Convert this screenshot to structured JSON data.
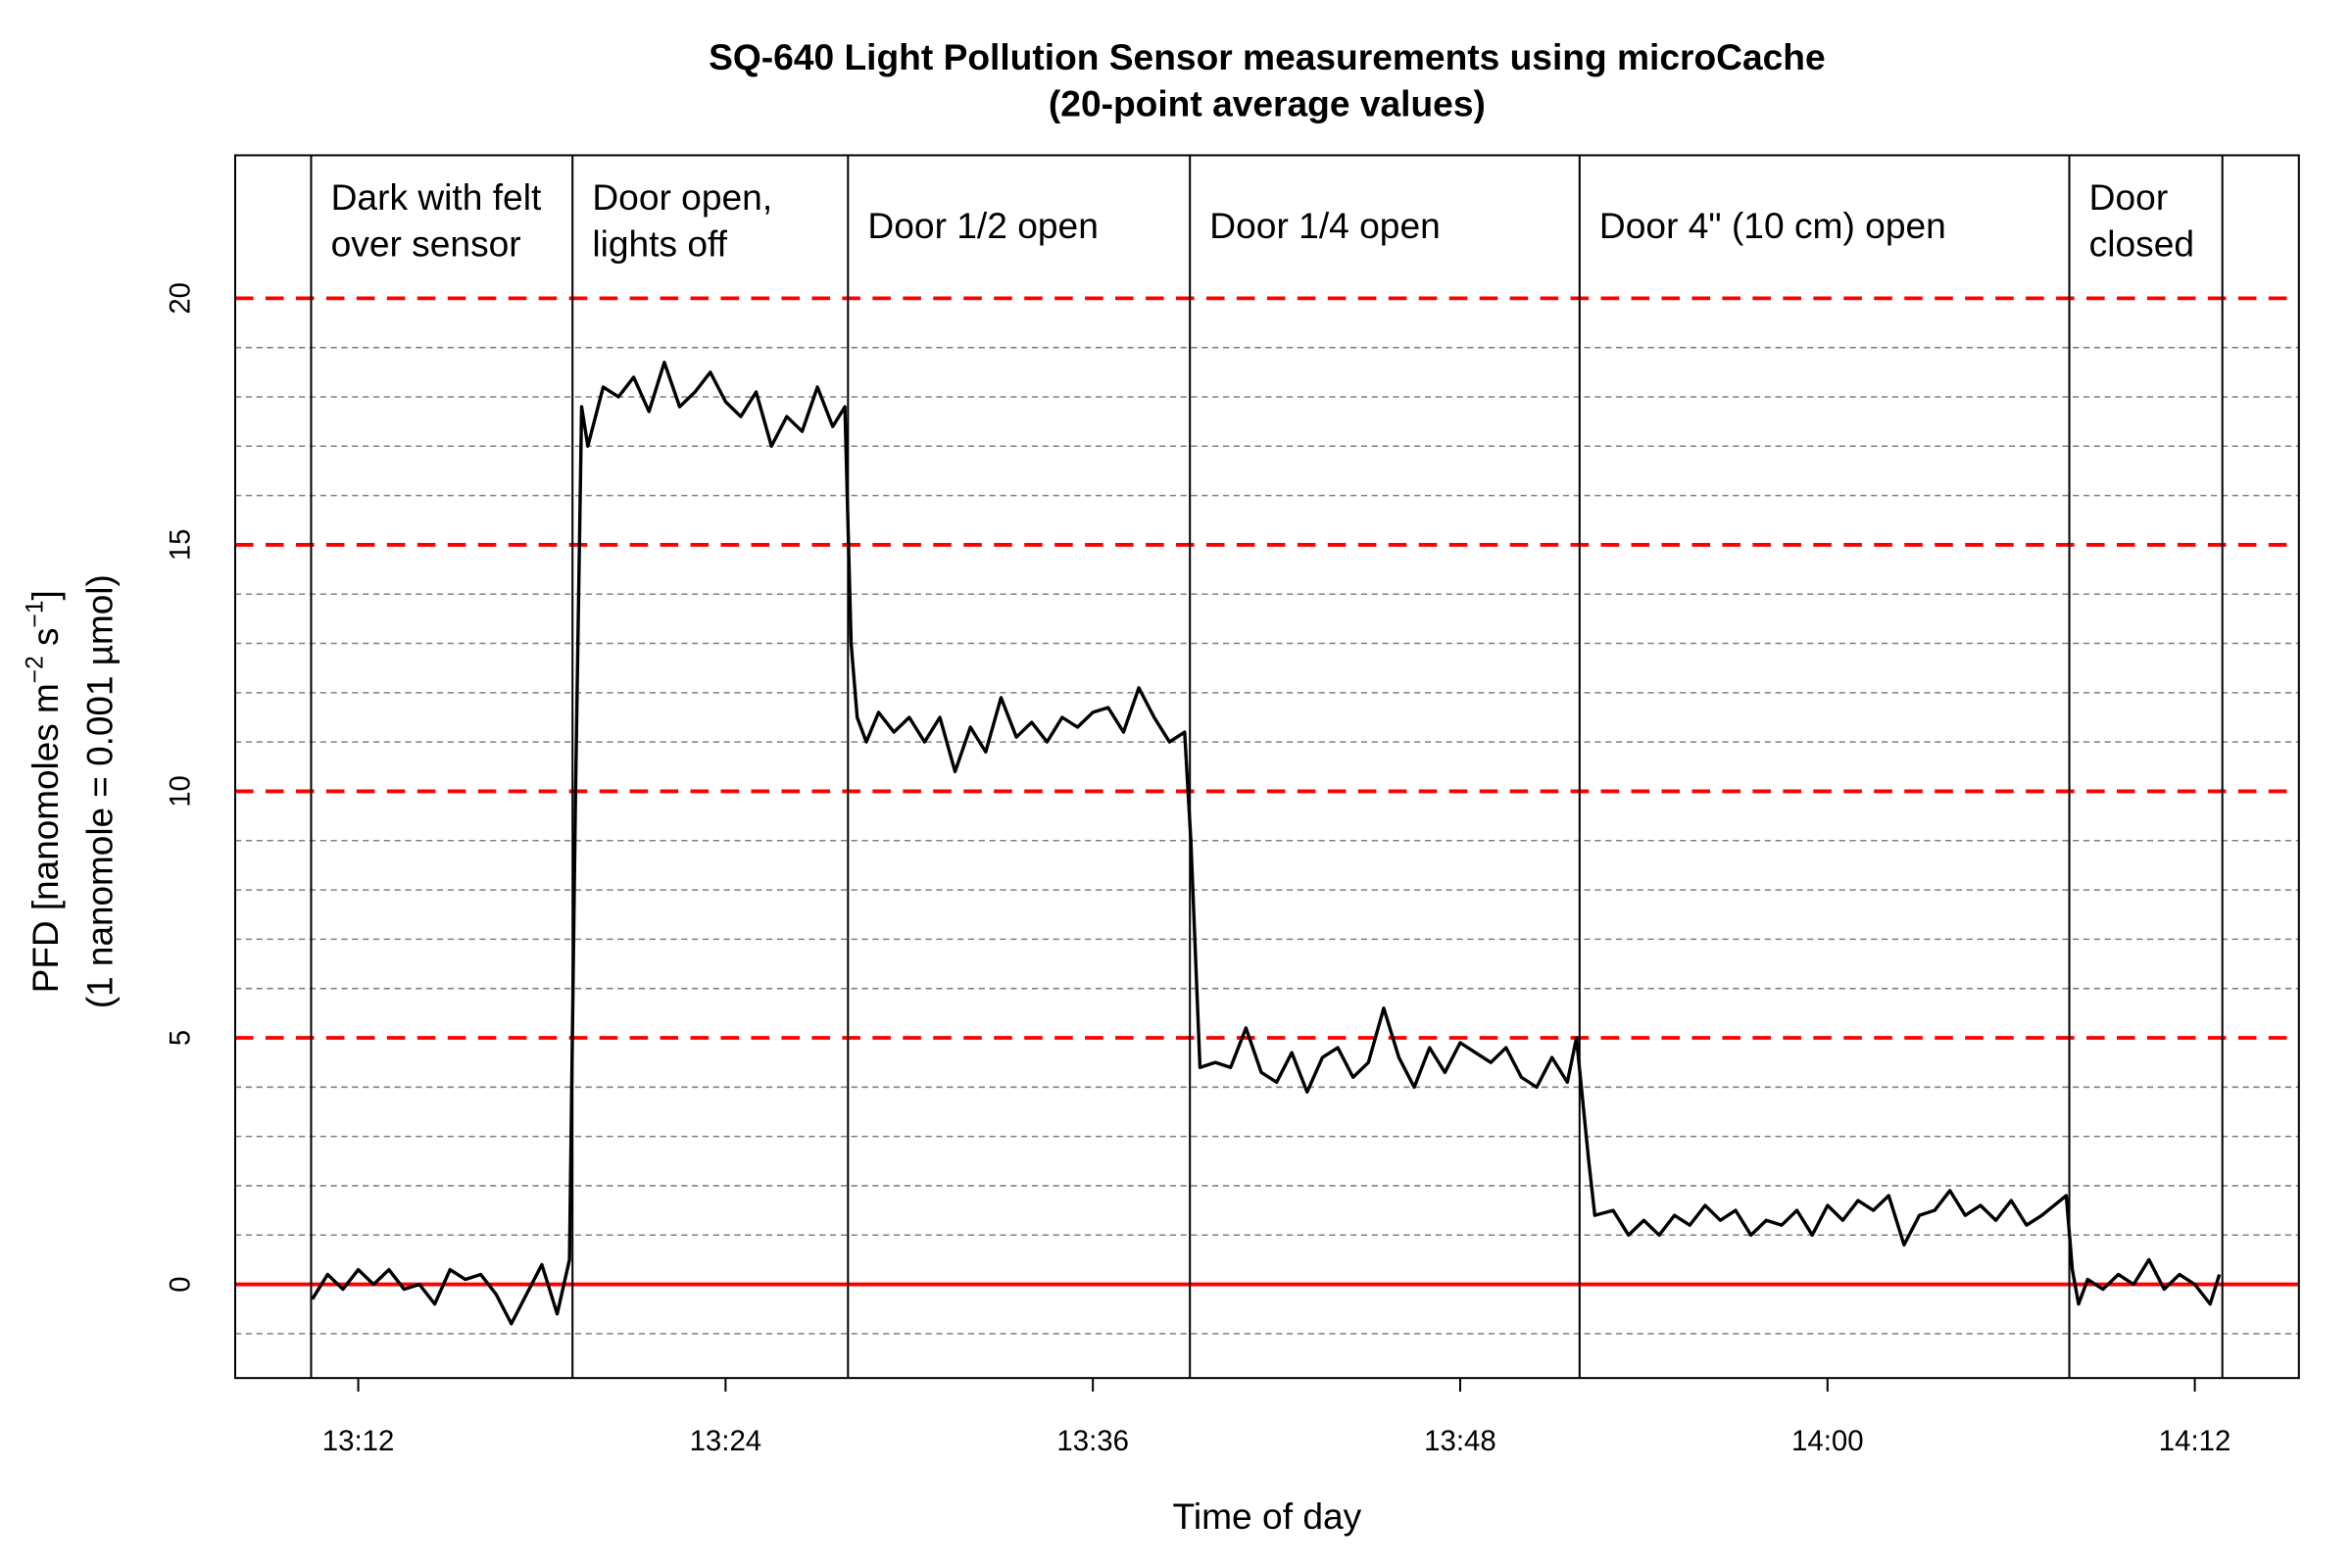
{
  "chart_data": {
    "type": "line",
    "title": "SQ-640 Light Pollution Sensor measurements using microCache",
    "subtitle": "(20-point average values)",
    "xlabel": "Time of day",
    "ylabel": "PFD [nanomoles m^-2 s^-1]",
    "ylabel_main": "PFD [nanomoles  m",
    "ylabel_sup1": "−2",
    "ylabel_mid": " s",
    "ylabel_sup2": "−1",
    "ylabel_end": "]",
    "ylabel2": "(1 nanomole = 0.001 µmol)",
    "x_unit": "minutes after 13:00",
    "xlim": [
      7.98,
      75.4
    ],
    "ylim": [
      -1.9,
      22.9
    ],
    "x_ticks": [
      12,
      24,
      36,
      48,
      60,
      72
    ],
    "x_tick_labels": [
      "13:12",
      "13:24",
      "13:36",
      "13:48",
      "14:00",
      "14:12"
    ],
    "y_ticks": [
      0,
      5,
      10,
      15,
      20
    ],
    "y_tick_labels": [
      "0",
      "5",
      "10",
      "15",
      "20"
    ],
    "grid_minor": [
      -1,
      1,
      2,
      3,
      4,
      6,
      7,
      8,
      9,
      11,
      12,
      13,
      14,
      16,
      17,
      18,
      19
    ],
    "grid_major_red": [
      5,
      10,
      15,
      20
    ],
    "zero_line": 0,
    "colors": {
      "line": "#000000",
      "red": "#ff0000",
      "grid": "#808080"
    },
    "region_boundaries": [
      10.46,
      19.0,
      28.0,
      39.17,
      51.9,
      67.9,
      72.9
    ],
    "regions": [
      {
        "start": 10.46,
        "end": 19.0,
        "lines": [
          "Dark with felt",
          "over sensor"
        ]
      },
      {
        "start": 19.0,
        "end": 28.0,
        "lines": [
          "Door open,",
          "lights off"
        ]
      },
      {
        "start": 28.0,
        "end": 39.17,
        "lines": [
          "Door 1/2 open"
        ]
      },
      {
        "start": 39.17,
        "end": 51.9,
        "lines": [
          "Door 1/4 open"
        ]
      },
      {
        "start": 51.9,
        "end": 67.9,
        "lines": [
          "Door 4\" (10 cm) open"
        ]
      },
      {
        "start": 67.9,
        "end": 72.9,
        "lines": [
          "Door",
          "closed"
        ]
      }
    ],
    "series": [
      {
        "name": "PFD",
        "x": [
          10.5,
          11,
          11.5,
          12,
          12.5,
          13,
          13.5,
          14,
          14.5,
          15,
          15.5,
          16,
          16.5,
          17,
          17.5,
          18,
          18.5,
          18.9,
          19.1,
          19.3,
          19.5,
          20,
          20.5,
          21,
          21.5,
          22,
          22.5,
          23,
          23.5,
          24,
          24.5,
          25,
          25.5,
          26,
          26.5,
          27,
          27.5,
          27.9,
          28.1,
          28.3,
          28.6,
          29,
          29.5,
          30,
          30.5,
          31,
          31.5,
          32,
          32.5,
          33,
          33.5,
          34,
          34.5,
          35,
          35.5,
          36,
          36.5,
          37,
          37.5,
          38,
          38.5,
          39,
          39.2,
          39.5,
          40,
          40.5,
          41,
          41.5,
          42,
          42.5,
          43,
          43.5,
          44,
          44.5,
          45,
          45.5,
          46,
          46.5,
          47,
          47.5,
          48,
          48.5,
          49,
          49.5,
          50,
          50.5,
          51,
          51.5,
          51.8,
          52.2,
          52.4,
          53,
          53.5,
          54,
          54.5,
          55,
          55.5,
          56,
          56.5,
          57,
          57.5,
          58,
          58.5,
          59,
          59.5,
          60,
          60.5,
          61,
          61.5,
          62,
          62.5,
          63,
          63.5,
          64,
          64.5,
          65,
          65.5,
          66,
          66.5,
          67,
          67.8,
          68,
          68.2,
          68.5,
          69,
          69.5,
          70,
          70.5,
          71,
          71.5,
          72,
          72.5,
          72.8
        ],
        "y": [
          -0.3,
          0.2,
          -0.1,
          0.3,
          0.0,
          0.3,
          -0.1,
          0.0,
          -0.4,
          0.3,
          0.1,
          0.2,
          -0.2,
          -0.8,
          -0.2,
          0.4,
          -0.6,
          0.5,
          10,
          17.8,
          17.0,
          18.2,
          18.0,
          18.4,
          17.7,
          18.7,
          17.8,
          18.1,
          18.5,
          17.9,
          17.6,
          18.1,
          17.0,
          17.6,
          17.3,
          18.2,
          17.4,
          17.8,
          13,
          11.5,
          11.0,
          11.6,
          11.2,
          11.5,
          11.0,
          11.5,
          10.4,
          11.3,
          10.8,
          11.9,
          11.1,
          11.4,
          11.0,
          11.5,
          11.3,
          11.6,
          11.7,
          11.2,
          12.1,
          11.5,
          11.0,
          11.2,
          9,
          4.4,
          4.5,
          4.4,
          5.2,
          4.3,
          4.1,
          4.7,
          3.9,
          4.6,
          4.8,
          4.2,
          4.5,
          5.6,
          4.6,
          4.0,
          4.8,
          4.3,
          4.9,
          4.7,
          4.5,
          4.8,
          4.2,
          4.0,
          4.6,
          4.1,
          5.0,
          2.5,
          1.4,
          1.5,
          1.0,
          1.3,
          1.0,
          1.4,
          1.2,
          1.6,
          1.3,
          1.5,
          1.0,
          1.3,
          1.2,
          1.5,
          1.0,
          1.6,
          1.3,
          1.7,
          1.5,
          1.8,
          0.8,
          1.4,
          1.5,
          1.9,
          1.4,
          1.6,
          1.3,
          1.7,
          1.2,
          1.4,
          1.8,
          0.3,
          -0.4,
          0.1,
          -0.1,
          0.2,
          0.0,
          0.5,
          -0.1,
          0.2,
          0.0,
          -0.4,
          0.2
        ]
      }
    ]
  }
}
